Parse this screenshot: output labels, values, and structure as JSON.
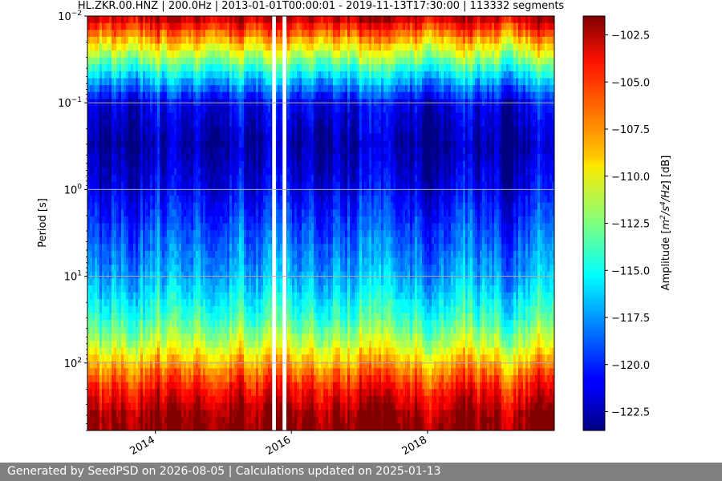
{
  "chart_data": {
    "type": "heatmap",
    "title": "HL.ZKR.00.HNZ | 200.0Hz | 2013-01-01T00:00:01 - 2019-11-13T17:30:00 | 113332 segments",
    "xlabel": "",
    "ylabel": "Period [s]",
    "x_range": [
      "2013-01-01",
      "2019-11-13"
    ],
    "x_ticks": [
      {
        "value": "2014-01-01",
        "label": "2014"
      },
      {
        "value": "2016-01-01",
        "label": "2016"
      },
      {
        "value": "2018-01-01",
        "label": "2018"
      }
    ],
    "y_scale": "log",
    "y_range": [
      0.01,
      600
    ],
    "y_ticks": [
      {
        "value": 0.01,
        "base": "10",
        "exp": "−2"
      },
      {
        "value": 0.1,
        "base": "10",
        "exp": "−1"
      },
      {
        "value": 1,
        "base": "10",
        "exp": "0"
      },
      {
        "value": 10,
        "base": "10",
        "exp": "1"
      },
      {
        "value": 100,
        "base": "10",
        "exp": "2"
      }
    ],
    "grid": true,
    "colormap": "jet",
    "colorbar": {
      "label_prefix": "Amplitude [",
      "label_unit_1": "m",
      "label_exp_1": "2",
      "label_mid": "/s",
      "label_exp_2": "4",
      "label_unit_2": "/Hz",
      "label_suffix": "] [dB]",
      "range": [
        -123.5,
        -101.5
      ],
      "ticks": [
        -102.5,
        -105.0,
        -107.5,
        -110.0,
        -112.5,
        -115.0,
        -117.5,
        -120.0,
        -122.5
      ],
      "tick_labels": [
        "−102.5",
        "−105.0",
        "−107.5",
        "−110.0",
        "−112.5",
        "−115.0",
        "−117.5",
        "−120.0",
        "−122.5"
      ]
    },
    "data_gaps": [
      {
        "start": "2015-09-20",
        "end": "2015-10-10"
      },
      {
        "start": "2015-11-15",
        "end": "2015-12-05"
      }
    ],
    "amplitude_profile": [
      {
        "period": 0.01,
        "dB": -102.5
      },
      {
        "period": 0.02,
        "dB": -108.5
      },
      {
        "period": 0.05,
        "dB": -116.0
      },
      {
        "period": 0.1,
        "dB": -121.0
      },
      {
        "period": 0.3,
        "dB": -122.5
      },
      {
        "period": 1,
        "dB": -121.0
      },
      {
        "period": 3,
        "dB": -119.0
      },
      {
        "period": 10,
        "dB": -117.0
      },
      {
        "period": 30,
        "dB": -114.0
      },
      {
        "period": 60,
        "dB": -111.0
      },
      {
        "period": 100,
        "dB": -108.0
      },
      {
        "period": 200,
        "dB": -104.5
      },
      {
        "period": 400,
        "dB": -102.0
      },
      {
        "period": 600,
        "dB": -101.5
      }
    ]
  },
  "footer": {
    "text": "Generated by SeedPSD on 2026-08-05 | Calculations updated on 2025-01-13"
  }
}
